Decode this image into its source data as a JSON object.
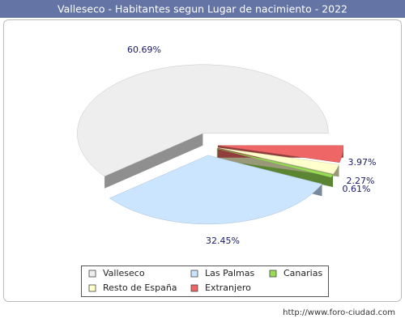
{
  "chart_data": {
    "type": "pie3d",
    "title": "Valleseco - Habitantes segun Lugar de nacimiento - 2022",
    "categories": [
      "Valleseco",
      "Las Palmas",
      "Canarias",
      "Resto de España",
      "Extranjero"
    ],
    "values": [
      60.69,
      32.45,
      0.61,
      2.27,
      3.97
    ],
    "value_labels": [
      "60.69%",
      "32.45%",
      "0.61%",
      "2.27%",
      "3.97%"
    ],
    "colors": [
      "#eeeeee",
      "#cce5ff",
      "#99dd55",
      "#ffffcc",
      "#ee6666"
    ],
    "source": "http://www.foro-ciudad.com"
  }
}
